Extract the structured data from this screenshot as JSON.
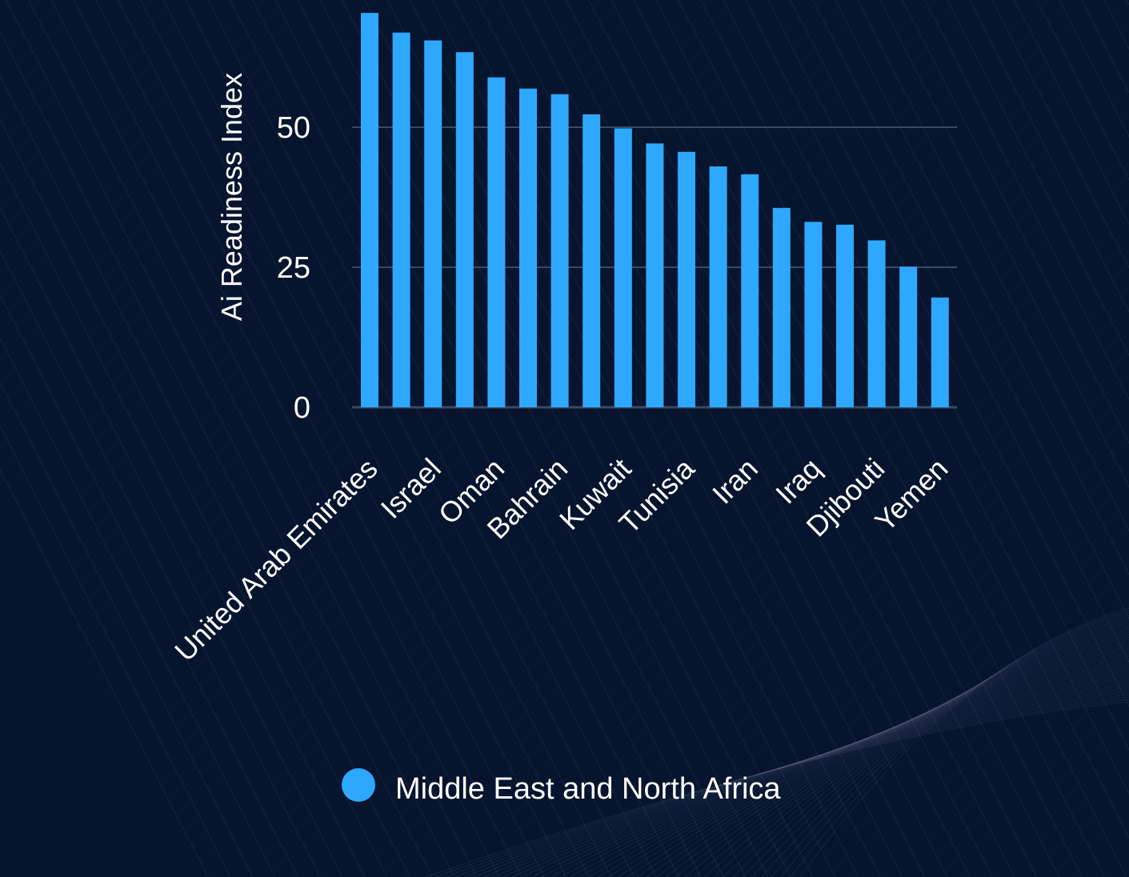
{
  "chart_data": {
    "type": "bar",
    "title": "",
    "xlabel": "",
    "ylabel": "Ai Readiness Index",
    "ylim": [
      0,
      70
    ],
    "yticks": [
      0,
      25,
      50
    ],
    "grid": true,
    "legend_placement": "bottom",
    "categories": [
      "United Arab Emirates",
      "",
      "Israel",
      "",
      "Oman",
      "",
      "Bahrain",
      "",
      "Kuwait",
      "",
      "Tunisia",
      "",
      "Iran",
      "",
      "Iraq",
      "",
      "Djibouti",
      "",
      "Yemen"
    ],
    "series": [
      {
        "name": "Middle East and North Africa",
        "color": "#2ea8ff",
        "values": [
          70.4,
          66.9,
          65.5,
          63.4,
          58.9,
          56.9,
          55.9,
          52.3,
          49.8,
          47.1,
          45.6,
          43.0,
          41.6,
          35.6,
          33.1,
          32.6,
          29.8,
          25.1,
          19.6
        ]
      }
    ],
    "colors": {
      "background": "#06142e",
      "grid": "#3b4a63",
      "text": "#ffffff"
    }
  }
}
